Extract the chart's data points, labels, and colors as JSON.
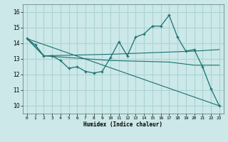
{
  "xlabel": "Humidex (Indice chaleur)",
  "xlim": [
    -0.5,
    23.5
  ],
  "ylim": [
    9.5,
    16.5
  ],
  "xticks": [
    0,
    1,
    2,
    3,
    4,
    5,
    6,
    7,
    8,
    9,
    10,
    11,
    12,
    13,
    14,
    15,
    16,
    17,
    18,
    19,
    20,
    21,
    22,
    23
  ],
  "yticks": [
    10,
    11,
    12,
    13,
    14,
    15,
    16
  ],
  "bg_color": "#cce8e8",
  "line_color": "#1a7070",
  "grid_color": "#aad4d4",
  "lines": [
    {
      "x": [
        0,
        1,
        2,
        3,
        4,
        5,
        6,
        7,
        8,
        9,
        10,
        11,
        12,
        13,
        14,
        15,
        16,
        17,
        18,
        19,
        20,
        21,
        22,
        23
      ],
      "y": [
        14.3,
        13.9,
        13.2,
        13.2,
        12.9,
        12.4,
        12.5,
        12.2,
        12.1,
        12.2,
        13.1,
        14.1,
        13.2,
        14.4,
        14.6,
        15.1,
        15.1,
        15.8,
        14.4,
        13.5,
        13.6,
        12.5,
        11.1,
        10.0
      ],
      "marker": true
    },
    {
      "x": [
        0,
        2,
        10,
        20,
        23
      ],
      "y": [
        14.3,
        13.2,
        13.3,
        13.5,
        13.6
      ],
      "marker": false
    },
    {
      "x": [
        0,
        2,
        10,
        17,
        20,
        23
      ],
      "y": [
        14.3,
        13.2,
        12.9,
        12.8,
        12.6,
        12.6
      ],
      "marker": false
    },
    {
      "x": [
        0,
        23
      ],
      "y": [
        14.3,
        10.0
      ],
      "marker": false
    }
  ]
}
